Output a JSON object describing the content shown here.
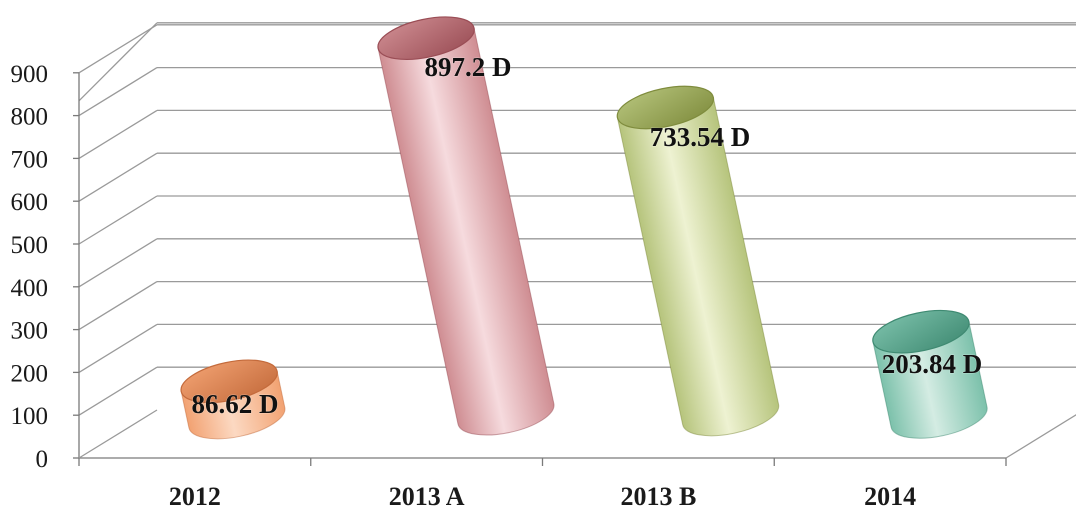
{
  "chart_data": {
    "type": "bar",
    "style": "3d-cylinder",
    "categories": [
      "2012",
      "2013 A",
      "2013 B",
      "2014"
    ],
    "values": [
      86.62,
      897.2,
      733.54,
      203.84
    ],
    "data_labels": [
      "86.62 D",
      "897.2 D",
      "733.54 D",
      "203.84 D"
    ],
    "yticks": [
      "0",
      "100",
      "200",
      "300",
      "400",
      "500",
      "600",
      "700",
      "800",
      "900"
    ],
    "ylim": [
      0,
      900
    ],
    "grid": true,
    "title": "",
    "xlabel": "",
    "ylabel": "",
    "colors": [
      "#f2a272",
      "#cf8d92",
      "#b6c47c",
      "#7cc1ab"
    ],
    "light_colors": [
      "#fcd9c2",
      "#f6dbde",
      "#eef2d2",
      "#d4ece3"
    ],
    "dark_colors": [
      "#c46b3c",
      "#9a4d55",
      "#7f8c3d",
      "#3f8a72"
    ]
  }
}
